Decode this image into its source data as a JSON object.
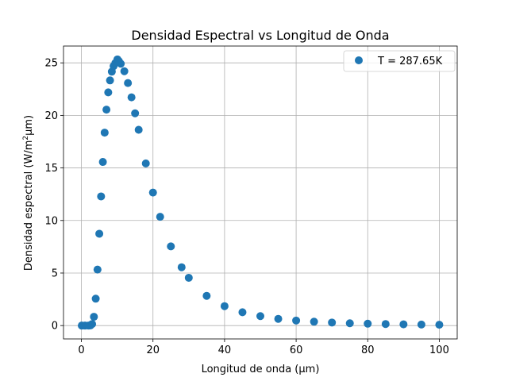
{
  "chart_data": {
    "type": "scatter",
    "title": "Densidad Espectral vs Longitud de Onda",
    "xlabel": "Longitud de onda (μm)",
    "ylabel_prefix": "Densidad espectral (W/m",
    "ylabel_sup": "2",
    "ylabel_suffix": "μm)",
    "xlim": [
      -5,
      105
    ],
    "ylim": [
      -1.27,
      26.6
    ],
    "xticks": [
      0,
      20,
      40,
      60,
      80,
      100
    ],
    "yticks": [
      0,
      5,
      10,
      15,
      20,
      25
    ],
    "grid": true,
    "legend": {
      "location": "upper right"
    },
    "series": [
      {
        "name": "T = 287.65K",
        "color": "#1f77b4",
        "x": [
          0.1,
          1.0,
          2.0,
          2.5,
          3.0,
          3.5,
          4.0,
          4.5,
          5.0,
          5.5,
          6.0,
          6.5,
          7.0,
          7.5,
          8.0,
          8.5,
          9.0,
          9.5,
          10.07,
          10.5,
          11.0,
          12.0,
          13.0,
          14.0,
          15.0,
          16.0,
          18.0,
          20.0,
          22.0,
          25.0,
          28.0,
          30.0,
          35.0,
          40.0,
          45.0,
          50.0,
          55.0,
          60.0,
          65.0,
          70.0,
          75.0,
          80.0,
          85.0,
          90.0,
          95.0,
          100.0
        ],
        "y": [
          0.0,
          0.0,
          0.0,
          0.01,
          0.15,
          0.84,
          2.56,
          5.33,
          8.74,
          12.29,
          15.57,
          18.36,
          20.55,
          22.19,
          23.33,
          24.16,
          24.69,
          24.99,
          25.33,
          25.15,
          24.92,
          24.2,
          23.08,
          21.72,
          20.2,
          18.63,
          15.43,
          12.66,
          10.35,
          7.54,
          5.55,
          4.55,
          2.83,
          1.85,
          1.27,
          0.9,
          0.64,
          0.48,
          0.37,
          0.29,
          0.22,
          0.18,
          0.15,
          0.12,
          0.1,
          0.08
        ]
      }
    ]
  }
}
